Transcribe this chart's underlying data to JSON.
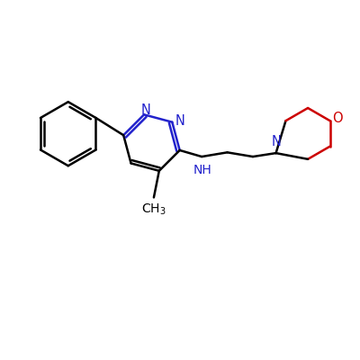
{
  "background_color": "#ffffff",
  "bond_color": "#000000",
  "nitrogen_color": "#2222cc",
  "oxygen_color": "#cc0000",
  "bond_width": 1.8,
  "dbo": 0.08,
  "figsize": [
    4.0,
    4.0
  ],
  "dpi": 100,
  "xlim": [
    0,
    10
  ],
  "ylim": [
    0,
    10
  ]
}
